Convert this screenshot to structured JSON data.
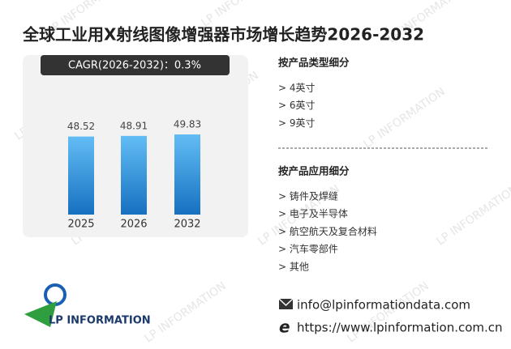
{
  "title": "全球工业用X射线图像增强器市场增长趋势2026-2032",
  "chart_data": {
    "type": "bar",
    "annotation": "CAGR(2026-2032)：0.3%",
    "categories": [
      "2025",
      "2026",
      "2032"
    ],
    "values": [
      48.52,
      48.91,
      49.83
    ],
    "color": "#2b8fdc"
  },
  "segments": [
    {
      "heading": "按产品类型细分",
      "items": [
        "> 4英寸",
        "> 6英寸",
        "> 9英寸"
      ]
    },
    {
      "heading": "按产品应用细分",
      "items": [
        "> 铸件及焊缝",
        "> 电子及半导体",
        "> 航空航天及复合材料",
        "> 汽车零部件",
        "> 其他"
      ]
    }
  ],
  "contact": {
    "email": "info@lpinformationdata.com",
    "url": "https://www.lpinformation.com.cn"
  },
  "logo": {
    "text": "LP INFORMATION"
  }
}
